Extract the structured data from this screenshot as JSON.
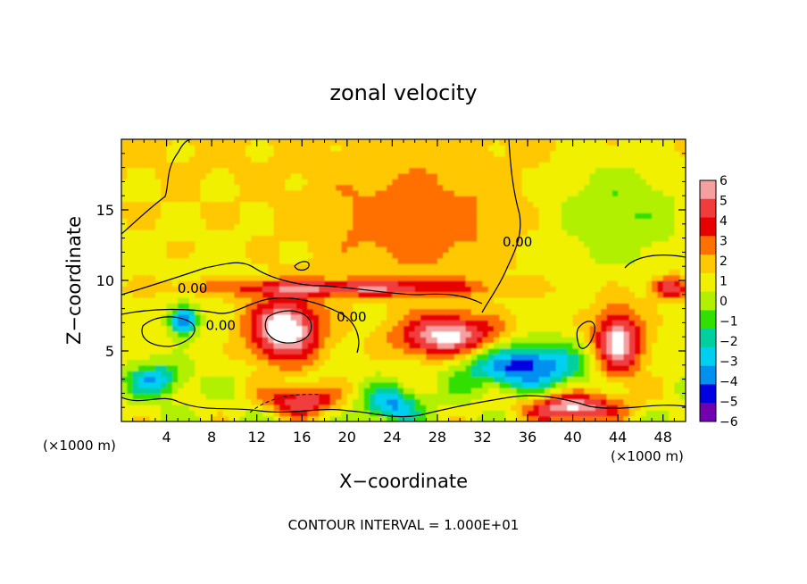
{
  "chart_data": {
    "type": "heatmap",
    "title": "zonal velocity",
    "xlabel": "X−coordinate",
    "ylabel": "Z−coordinate",
    "x_unit_left": "(×1000 m)",
    "x_unit_right": "(×1000 m)",
    "xlim": [
      0,
      50
    ],
    "ylim": [
      0,
      20
    ],
    "x_ticks": [
      4,
      8,
      12,
      16,
      20,
      24,
      28,
      32,
      36,
      40,
      44,
      48
    ],
    "y_ticks": [
      5,
      10,
      15
    ],
    "grid": false,
    "colorbar": {
      "levels": [
        6,
        5,
        4,
        3,
        2,
        1,
        0,
        -1,
        -2,
        -3,
        -4,
        -5,
        -6
      ],
      "labels": [
        "6",
        "5",
        "4",
        "3",
        "2",
        "1",
        "0",
        "−1",
        "−2",
        "−3",
        "−4",
        "−5",
        "−6"
      ],
      "colors": [
        "#f4a0a0",
        "#f03c3c",
        "#e80000",
        "#ff7000",
        "#ffc800",
        "#f0f000",
        "#b0f000",
        "#30e000",
        "#00d0a0",
        "#00d0f0",
        "#0090f0",
        "#0000e0",
        "#7000b0"
      ]
    },
    "contour_labels": [
      {
        "text": "0.00",
        "x": 6.3,
        "z": 9.1
      },
      {
        "text": "0.00",
        "x": 8.8,
        "z": 6.5
      },
      {
        "text": "0.00",
        "x": 20.4,
        "z": 7.1
      },
      {
        "text": "0.00",
        "x": 35.1,
        "z": 12.4
      }
    ],
    "footer": "CONTOUR INTERVAL = 1.000E+01",
    "features": [
      {
        "x": 14.5,
        "z": 6.5,
        "v": 6.5,
        "sx": 3.2,
        "sz": 2.3
      },
      {
        "x": 29.0,
        "z": 6.0,
        "v": 6.0,
        "sx": 4.5,
        "sz": 1.6
      },
      {
        "x": 44.0,
        "z": 5.5,
        "v": 6.0,
        "sx": 2.2,
        "sz": 2.5
      },
      {
        "x": 35.5,
        "z": 4.0,
        "v": -6.0,
        "sx": 5.5,
        "sz": 1.6
      },
      {
        "x": 40.0,
        "z": 1.0,
        "v": 6.0,
        "sx": 4.0,
        "sz": 1.0
      },
      {
        "x": 16.0,
        "z": 1.5,
        "v": 5.0,
        "sx": 3.0,
        "sz": 1.0
      },
      {
        "x": 5.5,
        "z": 7.2,
        "v": -6.0,
        "sx": 1.2,
        "sz": 1.0
      },
      {
        "x": 3.0,
        "z": 3.0,
        "v": -4.0,
        "sx": 2.5,
        "sz": 1.2
      },
      {
        "x": 24.0,
        "z": 1.2,
        "v": -4.5,
        "sx": 2.5,
        "sz": 1.2
      },
      {
        "x": 44.0,
        "z": 15.0,
        "v": -2.0,
        "sx": 6.0,
        "sz": 4.0
      },
      {
        "x": 26.0,
        "z": 14.0,
        "v": 2.0,
        "sx": 8.0,
        "sz": 4.0
      },
      {
        "x": 20.0,
        "z": 9.5,
        "v": 4.0,
        "sx": 12.0,
        "sz": 0.6
      },
      {
        "x": 48.5,
        "z": 9.5,
        "v": 4.5,
        "sx": 1.5,
        "sz": 0.8
      }
    ]
  }
}
